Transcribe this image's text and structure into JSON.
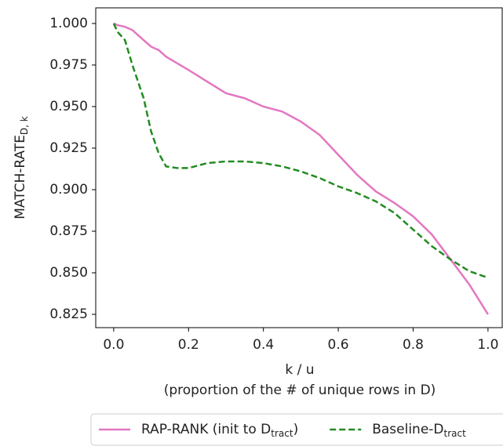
{
  "chart_data": {
    "type": "line",
    "xlabel": [
      "k / u",
      "(proportion of the # of unique rows in D)"
    ],
    "ylabel": {
      "text": "MATCH-RATE",
      "sub": "D, k"
    },
    "xlim": [
      -0.048,
      1.038
    ],
    "ylim": [
      0.817,
      1.0094
    ],
    "xticks": [
      {
        "value": 0,
        "label": "0.0"
      },
      0.2,
      0.4,
      0.6,
      0.8,
      {
        "value": 1,
        "label": "1.0"
      }
    ],
    "yticks": [
      0.825,
      {
        "value": 0.85,
        "label": "0.850"
      },
      0.875,
      {
        "value": 0.9,
        "label": "0.900"
      },
      0.925,
      {
        "value": 0.95,
        "label": "0.950"
      },
      0.975,
      {
        "value": 1,
        "label": "1.000"
      }
    ],
    "x": [
      0,
      0.01,
      0.03,
      0.05,
      0.08,
      0.1,
      0.12,
      0.14,
      0.17,
      0.2,
      0.25,
      0.3,
      0.35,
      0.4,
      0.45,
      0.5,
      0.55,
      0.6,
      0.65,
      0.7,
      0.75,
      0.8,
      0.85,
      0.9,
      0.95,
      1.0
    ],
    "series": [
      {
        "name": {
          "text": "RAP-RANK (init to D",
          "sub": "tract",
          "tail": ")"
        },
        "color": "#e377c2",
        "linestyle": "solid",
        "values": [
          1.0,
          0.999,
          0.998,
          0.996,
          0.99,
          0.986,
          0.984,
          0.98,
          0.976,
          0.972,
          0.965,
          0.958,
          0.955,
          0.95,
          0.947,
          0.941,
          0.933,
          0.921,
          0.909,
          0.899,
          0.892,
          0.884,
          0.873,
          0.858,
          0.843,
          0.825
        ]
      },
      {
        "name": {
          "text": "Baseline-D",
          "sub": "tract"
        },
        "color": "#228b22",
        "linestyle": "dashed",
        "values": [
          1.0,
          0.995,
          0.99,
          0.975,
          0.955,
          0.935,
          0.922,
          0.914,
          0.913,
          0.913,
          0.916,
          0.917,
          0.917,
          0.916,
          0.914,
          0.911,
          0.907,
          0.902,
          0.898,
          0.893,
          0.886,
          0.876,
          0.866,
          0.858,
          0.851,
          0.847
        ]
      }
    ],
    "legend": "bottom"
  }
}
